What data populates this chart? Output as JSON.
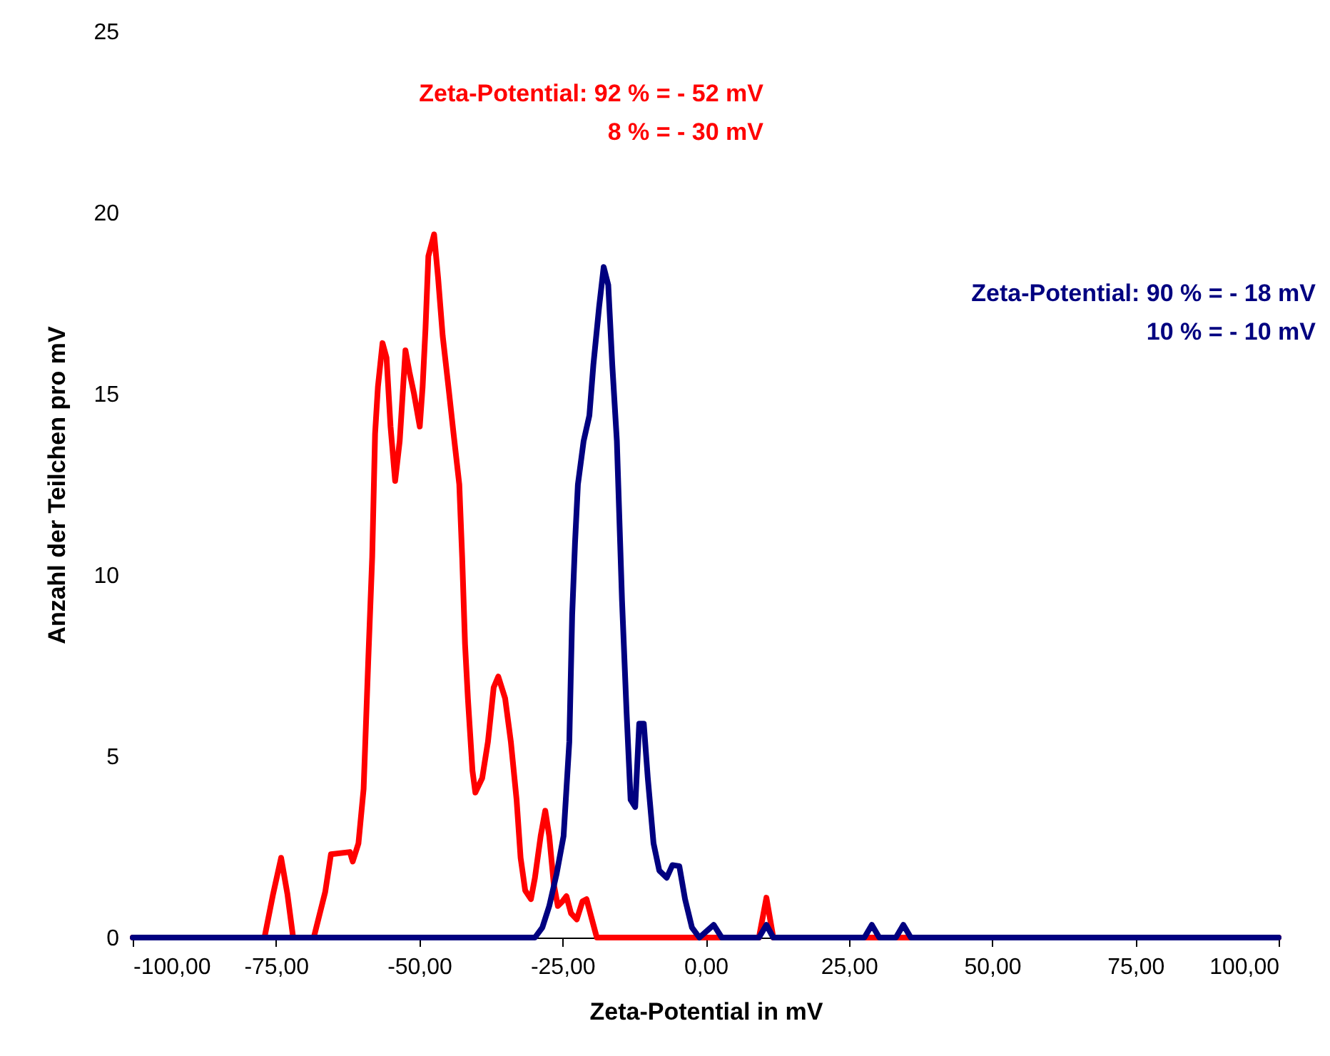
{
  "chart_data": {
    "type": "line",
    "xlabel": "Zeta-Potential in mV",
    "ylabel": "Anzahl der Teilchen pro mV",
    "annotations": [
      "Zeta-Potential:  92 % = - 52 mV\n8 % = - 30 mV",
      "Zeta-Potential:  90 % = - 18 mV\n10 % = - 10 mV"
    ],
    "xlim": [
      -100,
      100
    ],
    "xticks": [
      {
        "value": -100,
        "label": "-100,00"
      },
      {
        "value": -75,
        "label": "-75,00"
      },
      {
        "value": -50,
        "label": "-50,00"
      },
      {
        "value": -25,
        "label": "-25,00"
      },
      {
        "value": 0,
        "label": "0,00"
      },
      {
        "value": 25,
        "label": "25,00"
      },
      {
        "value": 50,
        "label": "50,00"
      },
      {
        "value": 75,
        "label": "75,00"
      },
      {
        "value": 100,
        "label": "100,00"
      }
    ],
    "ylim": [
      0,
      25
    ],
    "yticks": [
      0,
      5,
      10,
      15,
      20,
      25
    ],
    "grid": false,
    "legend": false,
    "line_style": "solid",
    "marker": "none",
    "series": [
      {
        "color": "#ff0000",
        "x": [
          -100,
          -77,
          -75.5,
          -74.1,
          -73,
          -72,
          -68.4,
          -66.4,
          -65.4,
          -62.1,
          -61.6,
          -60.6,
          -59.7,
          -58.9,
          -58.2,
          -57.7,
          -57.2,
          -56.4,
          -55.7,
          -55,
          -54.2,
          -53.4,
          -52.4,
          -51.7,
          -50.9,
          -49.9,
          -49.4,
          -48.9,
          -48.4,
          -47.4,
          -46.7,
          -45.9,
          -44.9,
          -44,
          -43,
          -42.5,
          -42,
          -41.5,
          -40.7,
          -40.2,
          -39,
          -38,
          -37,
          -36.2,
          -35,
          -34,
          -33,
          -32.3,
          -31.5,
          -30.5,
          -29.8,
          -28.8,
          -28,
          -27.3,
          -26.5,
          -25.8,
          -25,
          -24.3,
          -23.5,
          -22.5,
          -21.5,
          -20.8,
          -19.8,
          -19,
          9.3,
          10.6,
          11.8,
          100
        ],
        "values": [
          0,
          0,
          1.2,
          2.2,
          1.2,
          0,
          0,
          1.26,
          2.3,
          2.36,
          2.1,
          2.6,
          4.1,
          7.6,
          10.5,
          13.9,
          15.2,
          16.4,
          16,
          14.1,
          12.6,
          13.7,
          16.2,
          15.6,
          15,
          14.1,
          15.2,
          16.8,
          18.8,
          19.4,
          18.2,
          16.6,
          15.2,
          13.9,
          12.5,
          10.5,
          8.1,
          6.6,
          4.6,
          4,
          4.4,
          5.4,
          6.9,
          7.2,
          6.6,
          5.4,
          3.8,
          2.2,
          1.3,
          1.06,
          1.65,
          2.8,
          3.5,
          2.8,
          1.46,
          0.87,
          1,
          1.14,
          0.67,
          0.5,
          1,
          1.06,
          0.47,
          0,
          0,
          1.1,
          0,
          0
        ]
      },
      {
        "color": "#000080",
        "x": [
          -100,
          -29.8,
          -28.5,
          -27.3,
          -26,
          -24.8,
          -23.8,
          -23.3,
          -22.8,
          -22.3,
          -21.3,
          -20.3,
          -19.6,
          -18.6,
          -17.8,
          -17,
          -16.3,
          -15.5,
          -14.6,
          -13.8,
          -13.1,
          -12.3,
          -11.6,
          -10.8,
          -10.1,
          -9.1,
          -8.1,
          -6.8,
          -5.8,
          -4.6,
          -3.6,
          -2.4,
          -1.1,
          1.4,
          2.8,
          9.3,
          10.6,
          11.8,
          27.7,
          29,
          30.3,
          33.2,
          34.5,
          35.8,
          100
        ],
        "values": [
          0,
          0,
          0.28,
          0.87,
          1.77,
          2.8,
          5.4,
          8.9,
          10.9,
          12.5,
          13.7,
          14.4,
          15.8,
          17.4,
          18.5,
          18,
          15.8,
          13.7,
          9.3,
          6.2,
          3.8,
          3.6,
          5.9,
          5.9,
          4.4,
          2.6,
          1.85,
          1.65,
          2,
          1.97,
          1.06,
          0.28,
          0,
          0.35,
          0,
          0,
          0.35,
          0,
          0,
          0.35,
          0,
          0,
          0.35,
          0,
          0
        ]
      }
    ]
  }
}
